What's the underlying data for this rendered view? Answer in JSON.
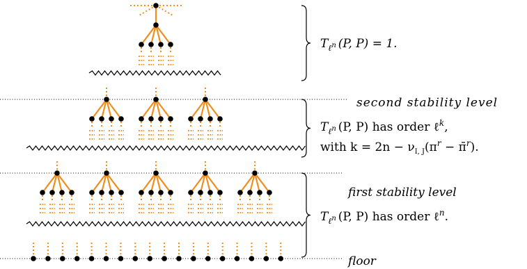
{
  "diagram": {
    "colors": {
      "tree": "#f28c1b",
      "node": "#000000",
      "line": "#000000"
    },
    "levels": {
      "second": "second stability level",
      "first": "first stability level",
      "floor": "floor"
    },
    "top_label": {
      "prefix": "T",
      "sub_base": "ℓ",
      "sub_exp": "n",
      "body": "(P, P) = 1."
    },
    "mid_label": {
      "prefix": "T",
      "sub_base": "ℓ",
      "sub_exp": "n",
      "body": "(P, P) has order ℓ",
      "exp": "k",
      "tail": ",",
      "line2_pre": "with k = 2n − ν",
      "line2_sub": "I, J",
      "line2_mid": "(π",
      "line2_sup1": "r",
      "line2_minus": " − π̄",
      "line2_sup2": "r",
      "line2_end": ")."
    },
    "bottom_label": {
      "prefix": "T",
      "sub_base": "ℓ",
      "sub_exp": "n",
      "body": "(P, P) has order ℓ",
      "exp": "n",
      "tail": "."
    },
    "counts": {
      "top_trees": 1,
      "mid_trees": 3,
      "bottom_trees": 5,
      "floor_nodes": 18
    }
  }
}
